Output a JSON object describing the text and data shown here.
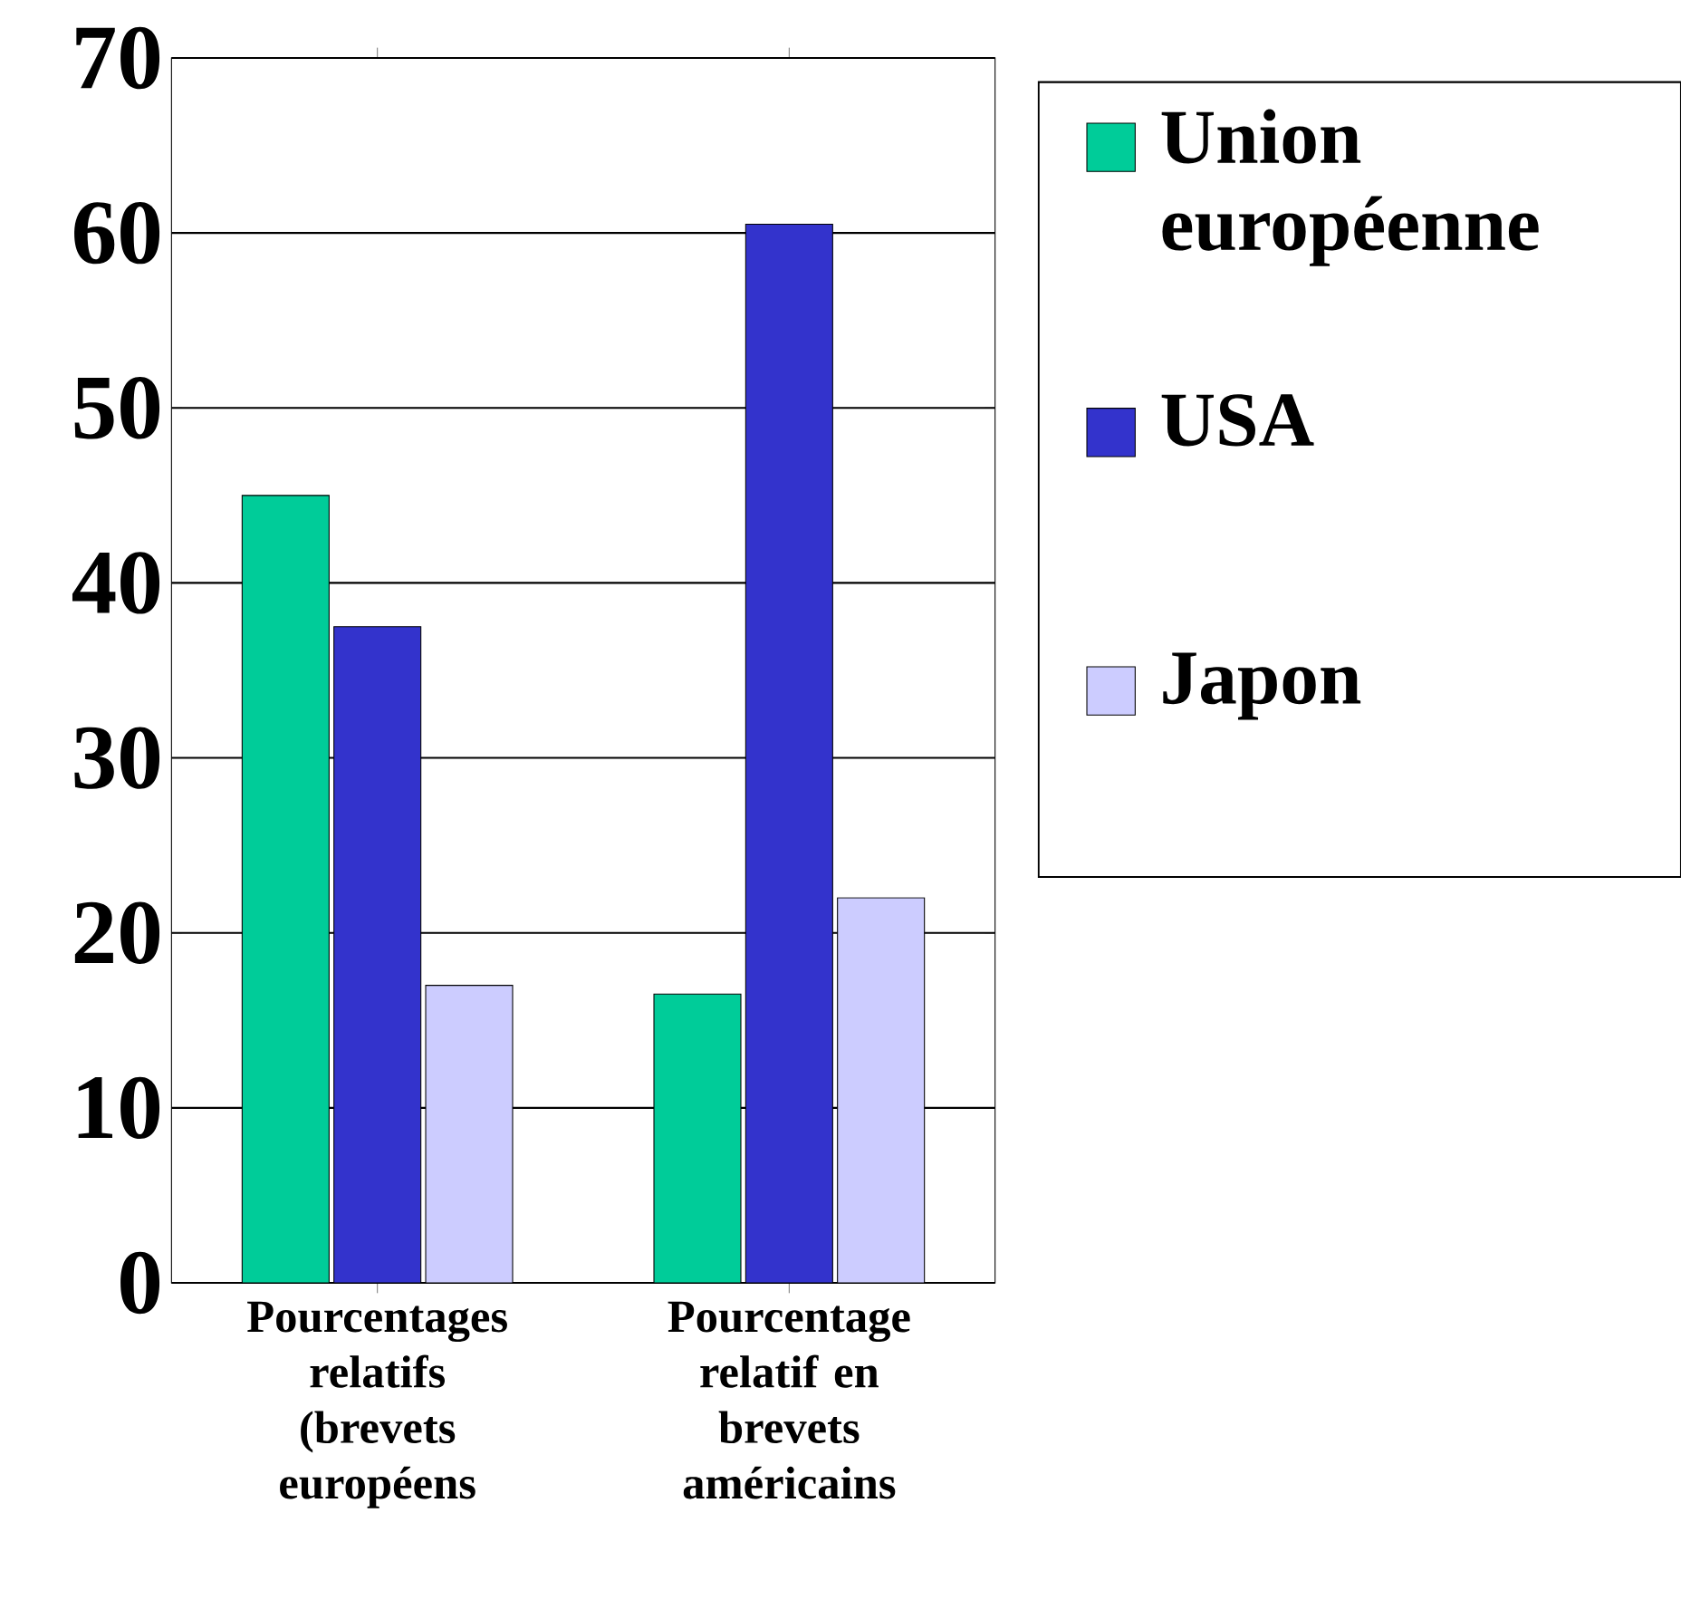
{
  "chart_data": {
    "type": "bar",
    "categories": [
      "Pourcentages relatifs (brevets européens",
      "Pourcentage relatif en brevets américains"
    ],
    "series": [
      {
        "name": "Union européenne",
        "color": "#00cc99",
        "values": [
          45,
          16.5
        ]
      },
      {
        "name": "USA",
        "color": "#3333cc",
        "values": [
          37.5,
          60.5
        ]
      },
      {
        "name": "Japon",
        "color": "#ccccff",
        "values": [
          17,
          22
        ]
      }
    ],
    "ylim": [
      0,
      70
    ],
    "yticks": [
      0,
      10,
      20,
      30,
      40,
      50,
      60,
      70
    ],
    "grid": "y",
    "legend": "right"
  }
}
